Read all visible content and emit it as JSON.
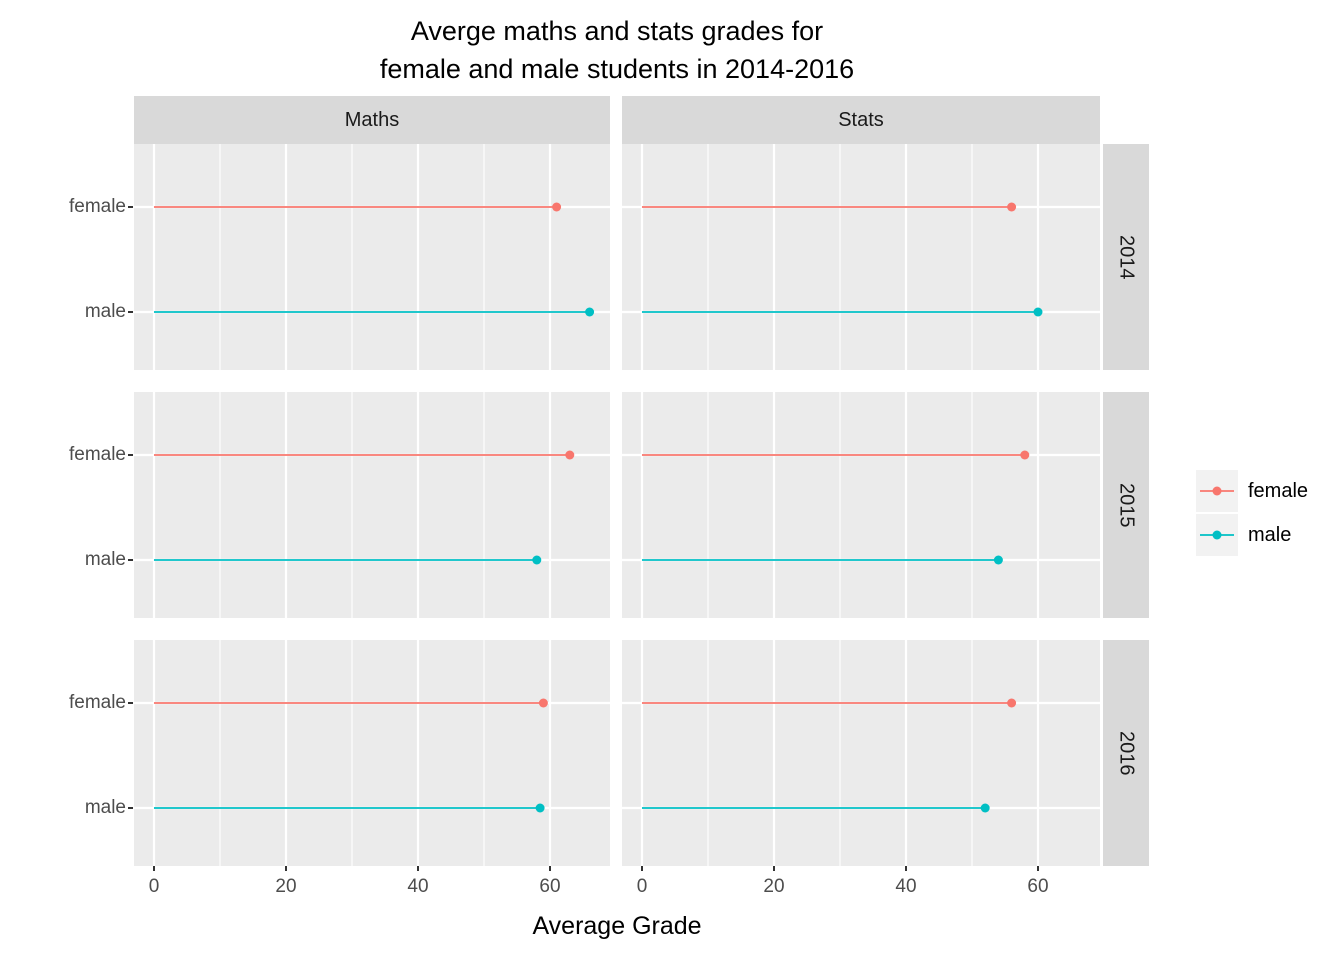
{
  "chart_data": {
    "type": "lollipop",
    "title_lines": [
      "Averge maths and stats grades for",
      "female and male students in 2014-2016"
    ],
    "xlabel": "Average Grade",
    "col_facets": [
      "Maths",
      "Stats"
    ],
    "row_facets": [
      "2014",
      "2015",
      "2016"
    ],
    "categories": [
      "female",
      "male"
    ],
    "x_ticks": [
      0,
      20,
      40,
      60
    ],
    "x_minor_ticks": [
      10,
      30,
      50
    ],
    "xlim": [
      0,
      69
    ],
    "series_colors": {
      "female": "#F8766D",
      "male": "#00BFC4"
    },
    "values": {
      "Maths": {
        "2014": {
          "female": 61,
          "male": 66
        },
        "2015": {
          "female": 63,
          "male": 58
        },
        "2016": {
          "female": 59,
          "male": 58.5
        }
      },
      "Stats": {
        "2014": {
          "female": 56,
          "male": 60
        },
        "2015": {
          "female": 58,
          "male": 54
        },
        "2016": {
          "female": 56,
          "male": 52
        }
      }
    },
    "legend": {
      "entries": [
        "female",
        "male"
      ],
      "position": "right"
    },
    "style": {
      "panel_bg": "#EBEBEB",
      "strip_bg": "#D9D9D9",
      "grid_color": "#FFFFFF",
      "axis_text_color": "#4D4D4D",
      "legend_key_bg": "#F2F2F2",
      "text_color": "#000000"
    }
  }
}
